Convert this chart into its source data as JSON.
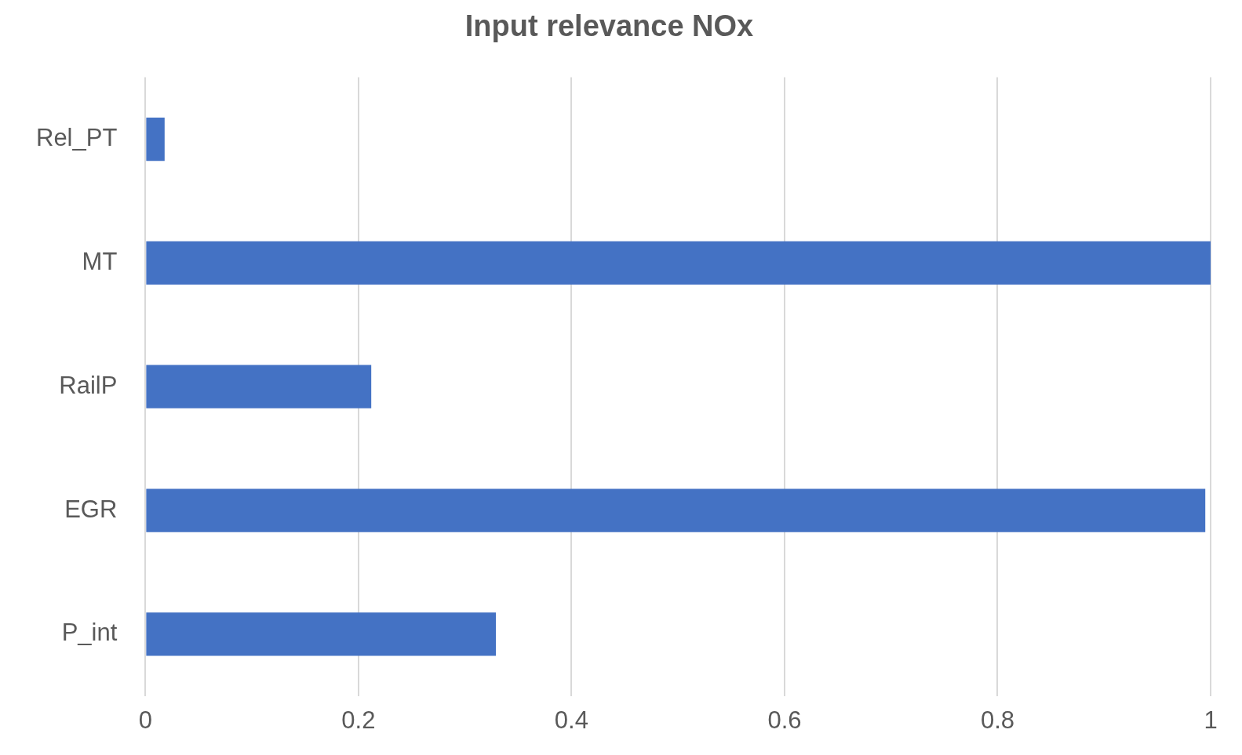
{
  "chart_data": {
    "type": "bar",
    "orientation": "horizontal",
    "title": "Input relevance NOx",
    "categories": [
      "Rel_PT",
      "MT",
      "RailP",
      "EGR",
      "P_int"
    ],
    "values": [
      0.018,
      1.0,
      0.212,
      0.995,
      0.329
    ],
    "color": "#4472c4",
    "xlim": [
      0,
      1
    ],
    "xticks": [
      0,
      0.2,
      0.4,
      0.6,
      0.8,
      1
    ],
    "grid": "x",
    "legend": false
  }
}
